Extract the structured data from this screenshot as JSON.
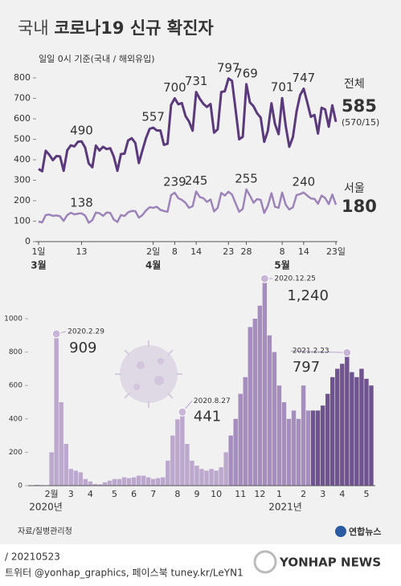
{
  "title_prefix": "국내",
  "title": "코로나19 신규 확진자",
  "source": "자료/질병관리청",
  "logo": "연합뉴스",
  "date_line": "/ 20210523",
  "social": "트위터 @yonhap_graphics, 페이스북 tuney.kr/LeYN1",
  "watermark": "YONHAP NEWS",
  "chart_data": [
    {
      "type": "line",
      "subtitle": "일일 0시 기준(국내 / 해외유입)",
      "annotation": "(570/15)",
      "months": [
        "3월",
        "4월",
        "5월"
      ],
      "categories": [
        "1일",
        null,
        null,
        null,
        null,
        null,
        null,
        null,
        null,
        null,
        null,
        null,
        "13",
        null,
        null,
        null,
        null,
        null,
        null,
        null,
        null,
        null,
        null,
        null,
        null,
        null,
        null,
        null,
        null,
        null,
        null,
        null,
        "2일",
        null,
        null,
        null,
        null,
        null,
        "8",
        null,
        null,
        null,
        null,
        null,
        "14",
        null,
        null,
        null,
        null,
        null,
        null,
        null,
        null,
        "23",
        null,
        null,
        null,
        null,
        "28",
        null,
        null,
        null,
        null,
        null,
        null,
        null,
        null,
        null,
        "8",
        null,
        null,
        null,
        null,
        null,
        "14",
        null,
        null,
        null,
        null,
        null,
        null,
        null,
        null,
        "23일"
      ],
      "ylim": [
        0,
        800
      ],
      "yticks": [
        0,
        100,
        200,
        300,
        400,
        500,
        600,
        700,
        800
      ],
      "series": [
        {
          "name": "전체",
          "color": "#5b3a7b",
          "values": [
            355,
            344,
            444,
            424,
            398,
            418,
            416,
            346,
            446,
            470,
            465,
            488,
            490,
            459,
            382,
            363,
            469,
            445,
            463,
            452,
            456,
            415,
            346,
            428,
            430,
            494,
            505,
            482,
            384,
            447,
            506,
            551,
            557,
            543,
            543,
            473,
            478,
            668,
            700,
            671,
            677,
            614,
            587,
            542,
            731,
            698,
            673,
            658,
            672,
            532,
            549,
            731,
            735,
            797,
            785,
            644,
            500,
            512,
            769,
            680,
            661,
            627,
            606,
            488,
            541,
            676,
            574,
            525,
            701,
            564,
            463,
            511,
            635,
            715,
            747,
            681,
            610,
            619,
            528,
            654,
            646,
            561,
            666,
            585
          ],
          "value_labels": [
            null,
            null,
            null,
            null,
            null,
            null,
            null,
            null,
            null,
            null,
            null,
            null,
            "490",
            null,
            null,
            null,
            null,
            null,
            null,
            null,
            null,
            null,
            null,
            null,
            null,
            null,
            null,
            null,
            null,
            null,
            null,
            null,
            "557",
            null,
            null,
            null,
            null,
            null,
            "700",
            null,
            null,
            null,
            null,
            null,
            "731",
            null,
            null,
            null,
            null,
            null,
            null,
            null,
            null,
            "797",
            null,
            null,
            null,
            null,
            "769",
            null,
            null,
            null,
            null,
            null,
            null,
            null,
            null,
            null,
            "701",
            null,
            null,
            null,
            null,
            null,
            "747",
            null,
            null,
            null,
            null,
            null,
            null,
            null,
            null,
            "585"
          ]
        },
        {
          "name": "서울",
          "color": "#9c84b8",
          "values": [
            98,
            94,
            130,
            132,
            126,
            128,
            124,
            101,
            130,
            141,
            133,
            137,
            138,
            127,
            92,
            105,
            142,
            139,
            126,
            142,
            140,
            108,
            96,
            130,
            125,
            143,
            150,
            149,
            117,
            130,
            152,
            168,
            165,
            170,
            155,
            150,
            146,
            227,
            239,
            212,
            204,
            190,
            165,
            173,
            245,
            218,
            212,
            194,
            206,
            148,
            165,
            238,
            225,
            244,
            230,
            187,
            146,
            160,
            255,
            225,
            190,
            208,
            204,
            140,
            175,
            237,
            170,
            165,
            240,
            180,
            157,
            168,
            227,
            232,
            240,
            225,
            211,
            209,
            185,
            225,
            213,
            183,
            230,
            180
          ],
          "value_labels": [
            null,
            null,
            null,
            null,
            null,
            null,
            null,
            null,
            null,
            null,
            null,
            null,
            "138",
            null,
            null,
            null,
            null,
            null,
            null,
            null,
            null,
            null,
            null,
            null,
            null,
            null,
            null,
            null,
            null,
            null,
            null,
            null,
            null,
            null,
            null,
            null,
            null,
            null,
            "239",
            null,
            null,
            null,
            null,
            null,
            "245",
            null,
            null,
            null,
            null,
            null,
            null,
            null,
            null,
            null,
            null,
            null,
            null,
            null,
            "255",
            null,
            null,
            null,
            null,
            null,
            null,
            null,
            null,
            null,
            null,
            null,
            null,
            null,
            null,
            null,
            "240",
            null,
            null,
            null,
            null,
            null,
            null,
            null,
            null,
            "180"
          ]
        }
      ]
    },
    {
      "type": "bar",
      "year_labels": [
        "2020년",
        "2021년"
      ],
      "categories": [
        null,
        null,
        null,
        null,
        "2월",
        null,
        null,
        null,
        "3",
        null,
        null,
        null,
        "4",
        null,
        null,
        null,
        null,
        "5",
        null,
        null,
        null,
        "6",
        null,
        null,
        null,
        "7",
        null,
        null,
        null,
        null,
        "8",
        null,
        null,
        null,
        "9",
        null,
        null,
        null,
        "10",
        null,
        null,
        null,
        null,
        "11",
        null,
        null,
        null,
        "12",
        null,
        null,
        null,
        "1",
        null,
        null,
        null,
        null,
        "2",
        null,
        null,
        null,
        "3",
        null,
        null,
        null,
        "4",
        null,
        null,
        null,
        null,
        "5",
        null
      ],
      "values": [
        2,
        5,
        3,
        2,
        200,
        909,
        500,
        250,
        100,
        90,
        80,
        40,
        25,
        10,
        8,
        20,
        30,
        40,
        40,
        50,
        45,
        50,
        60,
        60,
        50,
        40,
        45,
        50,
        150,
        300,
        397,
        441,
        250,
        150,
        120,
        100,
        90,
        100,
        90,
        110,
        200,
        300,
        400,
        550,
        650,
        950,
        1000,
        1078,
        1240,
        900,
        800,
        600,
        500,
        400,
        450,
        400,
        600,
        450,
        450,
        450,
        480,
        550,
        650,
        700,
        730,
        797,
        680,
        650,
        700,
        640,
        600
      ],
      "value_labels": [
        null,
        null,
        null,
        null,
        null,
        "909",
        null,
        null,
        null,
        null,
        null,
        null,
        null,
        null,
        null,
        null,
        null,
        null,
        null,
        null,
        null,
        null,
        null,
        null,
        null,
        null,
        null,
        null,
        null,
        null,
        null,
        "441",
        null,
        null,
        null,
        null,
        null,
        null,
        null,
        null,
        null,
        null,
        null,
        null,
        null,
        null,
        null,
        null,
        "1,240",
        null,
        null,
        null,
        null,
        null,
        null,
        null,
        null,
        null,
        null,
        null,
        null,
        null,
        null,
        null,
        null,
        "797",
        null,
        null,
        null,
        null,
        null
      ],
      "notes": [
        null,
        null,
        null,
        null,
        null,
        "2020.2.29",
        null,
        null,
        null,
        null,
        null,
        null,
        null,
        null,
        null,
        null,
        null,
        null,
        null,
        null,
        null,
        null,
        null,
        null,
        null,
        null,
        null,
        null,
        null,
        null,
        null,
        "2020.8.27",
        null,
        null,
        null,
        null,
        null,
        null,
        null,
        null,
        null,
        null,
        null,
        null,
        null,
        null,
        null,
        null,
        "2020.12.25",
        null,
        null,
        null,
        null,
        null,
        null,
        null,
        null,
        null,
        null,
        null,
        null,
        null,
        null,
        null,
        null,
        "2021.2.23",
        null,
        null,
        null,
        null,
        null
      ],
      "colors": [
        "#bca7cd",
        "#bca7cd",
        "#bca7cd",
        "#bca7cd",
        "#bca7cd",
        "#bca7cd",
        "#bca7cd",
        "#bca7cd",
        "#bca7cd",
        "#bca7cd",
        "#bca7cd",
        "#bca7cd",
        "#bca7cd",
        "#bca7cd",
        "#bca7cd",
        "#bca7cd",
        "#bca7cd",
        "#bca7cd",
        "#bca7cd",
        "#bca7cd",
        "#bca7cd",
        "#bca7cd",
        "#bca7cd",
        "#bca7cd",
        "#bca7cd",
        "#bca7cd",
        "#bca7cd",
        "#bca7cd",
        "#bca7cd",
        "#bca7cd",
        "#bca7cd",
        "#bca7cd",
        "#bca7cd",
        "#bca7cd",
        "#bca7cd",
        "#bca7cd",
        "#bca7cd",
        "#bca7cd",
        "#bca7cd",
        "#bca7cd",
        "#bca7cd",
        "#a68dbf",
        "#a68dbf",
        "#a68dbf",
        "#a68dbf",
        "#a68dbf",
        "#a68dbf",
        "#a68dbf",
        "#a68dbf",
        "#a68dbf",
        "#a68dbf",
        "#a68dbf",
        "#a68dbf",
        "#a68dbf",
        "#a68dbf",
        "#a68dbf",
        "#a68dbf",
        "#a68dbf",
        "#6f5290",
        "#6f5290",
        "#6f5290",
        "#6f5290",
        "#6f5290",
        "#6f5290",
        "#6f5290",
        "#6f5290",
        "#6f5290",
        "#6f5290",
        "#6f5290",
        "#6f5290",
        "#6f5290"
      ],
      "ylim": [
        0,
        1250
      ],
      "yticks": [
        0,
        200,
        400,
        600,
        800,
        1000
      ]
    }
  ]
}
